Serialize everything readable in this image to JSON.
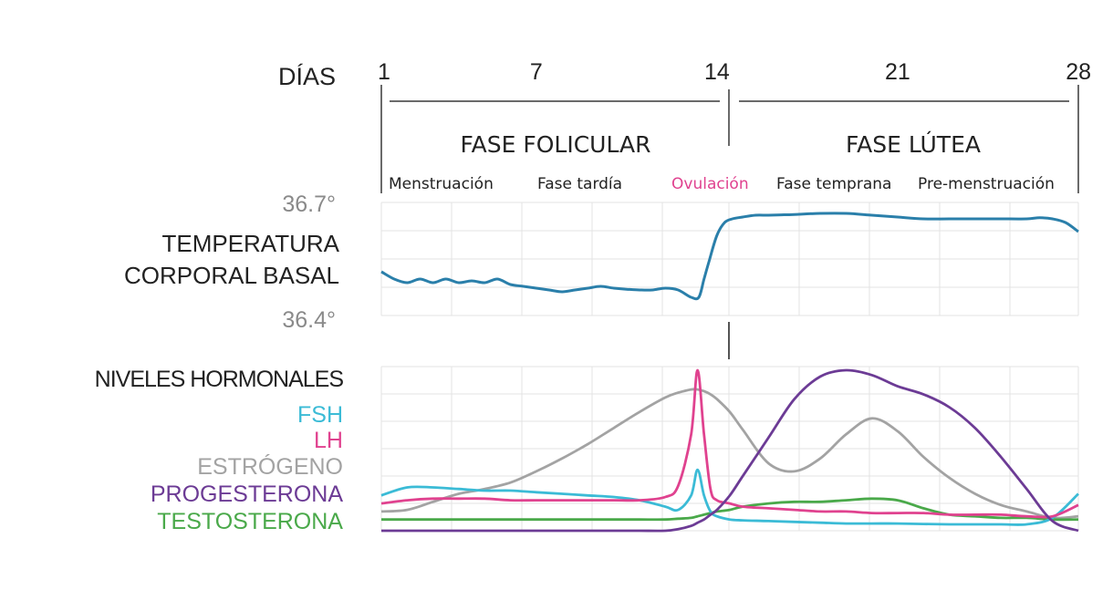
{
  "chart_data": {
    "type": "line",
    "days_label": "DÍAS",
    "day_ticks": [
      "1",
      "7",
      "14",
      "21",
      "28"
    ],
    "phases": [
      "FASE FOLICULAR",
      "FASE LÚTEA"
    ],
    "subphases": [
      "Menstruación",
      "Fase tardía",
      "Ovulación",
      "Fase temprana",
      "Pre-menstruación"
    ],
    "temperature": {
      "title_line1": "TEMPERATURA",
      "title_line2": "CORPORAL BASAL",
      "ytop": "36.7°",
      "ybottom": "36.4°",
      "ylim": [
        36.4,
        36.7
      ],
      "x": [
        1,
        1.5,
        2,
        2.5,
        3,
        3.5,
        4,
        4.5,
        5,
        5.5,
        6,
        6.5,
        7,
        7.5,
        8,
        8.5,
        9,
        9.5,
        10,
        10.5,
        11,
        11.5,
        12,
        12.5,
        13,
        13.3,
        13.5,
        13.7,
        14,
        14.3,
        14.6,
        15,
        15.5,
        16,
        16.5,
        17,
        18,
        19,
        20,
        21,
        22,
        23,
        24,
        25,
        26,
        26.5,
        27,
        27.5,
        28
      ],
      "y": [
        36.52,
        36.5,
        36.49,
        36.5,
        36.49,
        36.5,
        36.49,
        36.495,
        36.49,
        36.5,
        36.485,
        36.48,
        36.475,
        36.47,
        36.465,
        36.47,
        36.475,
        36.48,
        36.475,
        36.472,
        36.47,
        36.47,
        36.475,
        36.47,
        36.45,
        36.45,
        36.5,
        36.55,
        36.62,
        36.655,
        36.665,
        36.67,
        36.675,
        36.675,
        36.676,
        36.677,
        36.68,
        36.68,
        36.675,
        36.67,
        36.665,
        36.665,
        36.665,
        36.665,
        36.665,
        36.668,
        36.665,
        36.655,
        36.63
      ],
      "color": "#2a7faa"
    },
    "hormones": {
      "title": "NIVELES HORMONALES",
      "x": [
        1,
        2,
        3,
        4,
        5,
        6,
        7,
        8,
        9,
        10,
        11,
        12,
        12.5,
        13,
        13.25,
        13.5,
        13.75,
        14,
        14.5,
        15,
        16,
        17,
        18,
        19,
        20,
        21,
        22,
        23,
        24,
        25,
        26,
        27,
        28
      ],
      "series": [
        {
          "name": "FSH",
          "color": "#3bbbd6",
          "values": [
            0.22,
            0.27,
            0.27,
            0.26,
            0.25,
            0.25,
            0.24,
            0.23,
            0.22,
            0.21,
            0.19,
            0.15,
            0.13,
            0.22,
            0.38,
            0.22,
            0.12,
            0.09,
            0.07,
            0.065,
            0.06,
            0.055,
            0.05,
            0.045,
            0.045,
            0.045,
            0.042,
            0.04,
            0.04,
            0.04,
            0.04,
            0.08,
            0.23
          ]
        },
        {
          "name": "LH",
          "color": "#e0428f",
          "values": [
            0.17,
            0.19,
            0.2,
            0.2,
            0.2,
            0.19,
            0.19,
            0.19,
            0.19,
            0.19,
            0.19,
            0.21,
            0.28,
            0.6,
            1.0,
            0.6,
            0.26,
            0.19,
            0.17,
            0.15,
            0.14,
            0.13,
            0.12,
            0.12,
            0.11,
            0.11,
            0.11,
            0.1,
            0.1,
            0.1,
            0.09,
            0.09,
            0.16
          ]
        },
        {
          "name": "ESTRÓGENO",
          "color": "#a3a3a3",
          "values": [
            0.12,
            0.13,
            0.18,
            0.23,
            0.26,
            0.3,
            0.37,
            0.45,
            0.54,
            0.64,
            0.74,
            0.83,
            0.86,
            0.88,
            0.88,
            0.87,
            0.85,
            0.82,
            0.74,
            0.63,
            0.42,
            0.37,
            0.45,
            0.6,
            0.7,
            0.62,
            0.46,
            0.33,
            0.23,
            0.16,
            0.12,
            0.08,
            0.09
          ]
        },
        {
          "name": "PROGESTERONA",
          "color": "#6c3b95",
          "values": [
            0.0,
            0.0,
            0.0,
            0.0,
            0.0,
            0.0,
            0.0,
            0.0,
            0.0,
            0.0,
            0.0,
            0.0,
            0.01,
            0.03,
            0.05,
            0.07,
            0.1,
            0.13,
            0.22,
            0.34,
            0.58,
            0.82,
            0.96,
            1.0,
            0.97,
            0.9,
            0.85,
            0.77,
            0.64,
            0.46,
            0.26,
            0.06,
            0.0
          ]
        },
        {
          "name": "TESTOSTERONA",
          "color": "#4aa94a",
          "values": [
            0.07,
            0.07,
            0.07,
            0.07,
            0.07,
            0.07,
            0.07,
            0.07,
            0.07,
            0.07,
            0.07,
            0.07,
            0.075,
            0.08,
            0.09,
            0.1,
            0.11,
            0.12,
            0.13,
            0.15,
            0.17,
            0.18,
            0.18,
            0.19,
            0.2,
            0.19,
            0.14,
            0.1,
            0.09,
            0.08,
            0.08,
            0.07,
            0.07
          ]
        }
      ]
    },
    "colors": {
      "ovulation": "#e0428f",
      "text": "#222222",
      "axis_value": "#8a8a8a",
      "grid": "#e3e3e3"
    }
  }
}
